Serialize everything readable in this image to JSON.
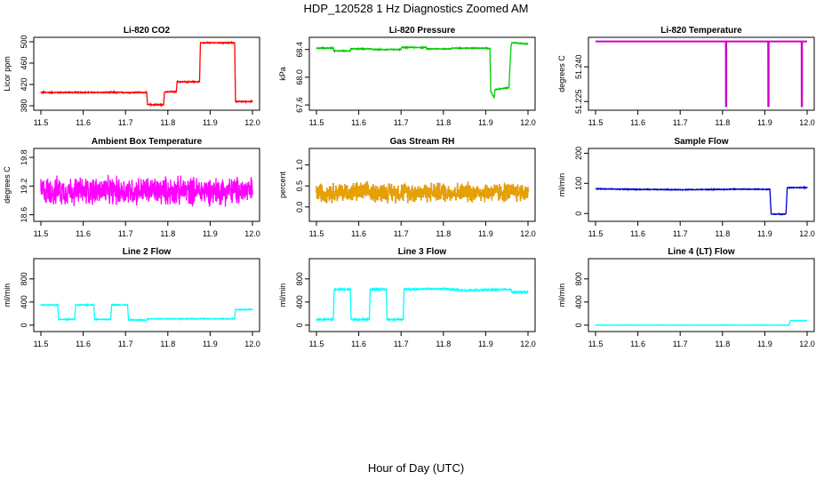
{
  "figure_title": "HDP_120528  1 Hz Diagnostics Zoomed AM",
  "x_label": "Hour of Day (UTC)",
  "chart_data": [
    {
      "type": "line",
      "id": "co2",
      "title": "Li-820 CO2",
      "ylabel": "Licor ppm",
      "color": "#ff0000",
      "xlim": [
        11.5,
        12.0
      ],
      "ylim": [
        375,
        505
      ],
      "xticks": [
        11.5,
        11.6,
        11.7,
        11.8,
        11.9,
        12.0
      ],
      "xtick_labels": [
        "11.5",
        "11.6",
        "11.7",
        "11.8",
        "11.9",
        "12.0"
      ],
      "yticks": [
        380,
        420,
        460,
        500
      ],
      "ytick_labels": [
        "380",
        "420",
        "460",
        "500"
      ],
      "noise": 1.2,
      "x": [
        11.5,
        11.75,
        11.752,
        11.79,
        11.792,
        11.82,
        11.822,
        11.875,
        11.877,
        11.958,
        11.96,
        12.0
      ],
      "y": [
        405,
        405,
        382,
        382,
        406,
        406,
        425,
        425,
        498,
        498,
        388,
        388
      ]
    },
    {
      "type": "line",
      "id": "pressure",
      "title": "Li-820 Pressure",
      "ylabel": "kPa",
      "color": "#00cc00",
      "xlim": [
        11.5,
        12.0
      ],
      "ylim": [
        67.55,
        68.55
      ],
      "xticks": [
        11.5,
        11.6,
        11.7,
        11.8,
        11.9,
        12.0
      ],
      "xtick_labels": [
        "11.5",
        "11.6",
        "11.7",
        "11.8",
        "11.9",
        "12.0"
      ],
      "yticks": [
        67.6,
        68.0,
        68.4
      ],
      "ytick_labels": [
        "67.6",
        "68.0",
        "68.4"
      ],
      "noise": 0.008,
      "x": [
        11.5,
        11.54,
        11.541,
        11.58,
        11.581,
        11.63,
        11.631,
        11.7,
        11.701,
        11.76,
        11.761,
        11.82,
        11.821,
        11.9,
        11.91,
        11.912,
        11.92,
        11.922,
        11.955,
        11.957,
        11.96,
        11.962,
        12.0
      ],
      "y": [
        68.42,
        68.42,
        68.38,
        68.38,
        68.41,
        68.41,
        68.4,
        68.4,
        68.43,
        68.43,
        68.41,
        68.41,
        68.42,
        68.42,
        68.41,
        67.8,
        67.7,
        67.82,
        67.85,
        68.1,
        68.45,
        68.5,
        68.48
      ]
    },
    {
      "type": "line",
      "id": "temp",
      "title": "Li-820 Temperature",
      "ylabel": "degrees C",
      "color": "#cc00cc",
      "xlim": [
        11.5,
        12.0
      ],
      "ylim": [
        51.222,
        51.252
      ],
      "xticks": [
        11.5,
        11.6,
        11.7,
        11.8,
        11.9,
        12.0
      ],
      "xtick_labels": [
        "11.5",
        "11.6",
        "11.7",
        "11.8",
        "11.9",
        "12.0"
      ],
      "yticks": [
        51.225,
        51.24
      ],
      "ytick_labels": [
        "51.225",
        "51.240"
      ],
      "noise": 0,
      "x": [
        11.5,
        11.808,
        11.8081,
        11.809,
        11.8091,
        11.908,
        11.9081,
        11.909,
        11.9091,
        11.987,
        11.9871,
        11.988,
        11.9881,
        12.0
      ],
      "y": [
        51.251,
        51.251,
        51.223,
        51.223,
        51.251,
        51.251,
        51.223,
        51.223,
        51.251,
        51.251,
        51.223,
        51.223,
        51.251,
        51.251
      ]
    },
    {
      "type": "line",
      "id": "boxtemp",
      "title": "Ambient Box Temperature",
      "ylabel": "degrees C",
      "color": "#ff00ff",
      "xlim": [
        11.5,
        12.0
      ],
      "ylim": [
        18.5,
        19.95
      ],
      "xticks": [
        11.5,
        11.6,
        11.7,
        11.8,
        11.9,
        12.0
      ],
      "xtick_labels": [
        "11.5",
        "11.6",
        "11.7",
        "11.8",
        "11.9",
        "12.0"
      ],
      "yticks": [
        18.6,
        19.2,
        19.8
      ],
      "ytick_labels": [
        "18.6",
        "19.2",
        "19.8"
      ],
      "noise": 0.35,
      "x": [
        11.5,
        12.0
      ],
      "y": [
        19.1,
        19.1
      ]
    },
    {
      "type": "line",
      "id": "rh",
      "title": "Gas Stream RH",
      "ylabel": "percent",
      "color": "#e6a000",
      "color2": "#b04000",
      "xlim": [
        11.5,
        12.0
      ],
      "ylim": [
        -0.3,
        1.35
      ],
      "xticks": [
        11.5,
        11.6,
        11.7,
        11.8,
        11.9,
        12.0
      ],
      "xtick_labels": [
        "11.5",
        "11.6",
        "11.7",
        "11.8",
        "11.9",
        "12.0"
      ],
      "yticks": [
        0.0,
        0.5,
        1.0
      ],
      "ytick_labels": [
        "0.0",
        "0.5",
        "1.0"
      ],
      "noise": 0.28,
      "x": [
        11.5,
        12.0
      ],
      "y": [
        0.35,
        0.35
      ]
    },
    {
      "type": "line",
      "id": "sampleflow",
      "title": "Sample Flow",
      "ylabel": "ml/min",
      "color": "#0000cc",
      "xlim": [
        11.5,
        12.0
      ],
      "ylim": [
        -20,
        210
      ],
      "xticks": [
        11.5,
        11.6,
        11.7,
        11.8,
        11.9,
        12.0
      ],
      "xtick_labels": [
        "11.5",
        "11.6",
        "11.7",
        "11.8",
        "11.9",
        "12.0"
      ],
      "yticks": [
        0,
        100,
        200
      ],
      "ytick_labels": [
        "0",
        "100",
        "200"
      ],
      "noise": 1.5,
      "x": [
        11.5,
        11.6,
        11.7,
        11.8,
        11.85,
        11.912,
        11.915,
        11.95,
        11.953,
        11.96,
        12.0
      ],
      "y": [
        82,
        80,
        79,
        80,
        81,
        80,
        -2,
        -2,
        85,
        86,
        86
      ]
    },
    {
      "type": "line",
      "id": "line2",
      "title": "Line 2 Flow",
      "ylabel": "ml/min",
      "color": "#00ffff",
      "xlim": [
        11.5,
        12.0
      ],
      "ylim": [
        -80,
        1120
      ],
      "xticks": [
        11.5,
        11.6,
        11.7,
        11.8,
        11.9,
        12.0
      ],
      "xtick_labels": [
        "11.5",
        "11.6",
        "11.7",
        "11.8",
        "11.9",
        "12.0"
      ],
      "yticks": [
        0,
        400,
        800
      ],
      "ytick_labels": [
        "0",
        "400",
        "800"
      ],
      "noise": 8,
      "x": [
        11.5,
        11.54,
        11.542,
        11.58,
        11.582,
        11.625,
        11.627,
        11.665,
        11.667,
        11.705,
        11.707,
        11.75,
        11.752,
        11.958,
        11.96,
        12.0
      ],
      "y": [
        350,
        350,
        100,
        100,
        350,
        350,
        100,
        100,
        350,
        350,
        90,
        90,
        110,
        110,
        270,
        270
      ]
    },
    {
      "type": "line",
      "id": "line3",
      "title": "Line 3 Flow",
      "ylabel": "ml/min",
      "color": "#00ffff",
      "xlim": [
        11.5,
        12.0
      ],
      "ylim": [
        -80,
        1120
      ],
      "xticks": [
        11.5,
        11.6,
        11.7,
        11.8,
        11.9,
        12.0
      ],
      "xtick_labels": [
        "11.5",
        "11.6",
        "11.7",
        "11.8",
        "11.9",
        "12.0"
      ],
      "yticks": [
        0,
        400,
        800
      ],
      "ytick_labels": [
        "0",
        "400",
        "800"
      ],
      "noise": 15,
      "x": [
        11.5,
        11.54,
        11.542,
        11.58,
        11.582,
        11.625,
        11.627,
        11.665,
        11.667,
        11.705,
        11.707,
        11.8,
        11.85,
        11.9,
        11.96,
        11.962,
        12.0
      ],
      "y": [
        100,
        100,
        620,
        620,
        100,
        100,
        620,
        620,
        100,
        100,
        620,
        630,
        600,
        610,
        620,
        570,
        570
      ]
    },
    {
      "type": "line",
      "id": "line4",
      "title": "Line 4 (LT) Flow",
      "ylabel": "ml/min",
      "color": "#00ffff",
      "xlim": [
        11.5,
        12.0
      ],
      "ylim": [
        -80,
        1120
      ],
      "xticks": [
        11.5,
        11.6,
        11.7,
        11.8,
        11.9,
        12.0
      ],
      "xtick_labels": [
        "11.5",
        "11.6",
        "11.7",
        "11.8",
        "11.9",
        "12.0"
      ],
      "yticks": [
        0,
        400,
        800
      ],
      "ytick_labels": [
        "0",
        "400",
        "800"
      ],
      "noise": 3,
      "x": [
        11.5,
        11.958,
        11.96,
        12.0
      ],
      "y": [
        0,
        0,
        80,
        80
      ]
    }
  ]
}
